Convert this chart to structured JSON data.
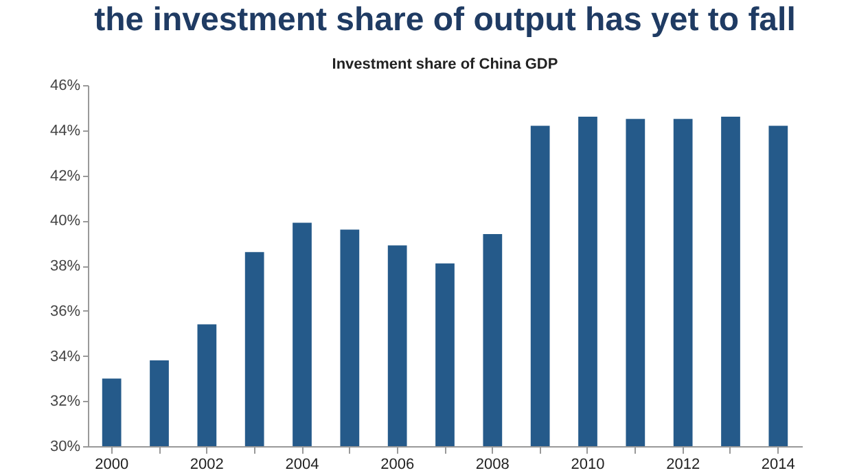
{
  "chart_data": {
    "type": "bar",
    "title": "the investment share of output has yet to fall",
    "subtitle": "Investment share of China GDP",
    "categories": [
      "2000",
      null,
      "2002",
      null,
      "2004",
      null,
      "2006",
      null,
      "2008",
      null,
      "2010",
      null,
      "2012",
      null,
      "2014"
    ],
    "values": [
      33.0,
      33.8,
      35.4,
      38.6,
      39.9,
      39.6,
      38.9,
      38.1,
      39.4,
      44.2,
      44.6,
      44.5,
      44.5,
      44.6,
      44.2
    ],
    "color": "#255a8a",
    "ylim": [
      30,
      46
    ],
    "yticks": [
      {
        "value": 30,
        "label": "30%"
      },
      {
        "value": 32,
        "label": "32%"
      },
      {
        "value": 34,
        "label": "34%"
      },
      {
        "value": 36,
        "label": "36%"
      },
      {
        "value": 38,
        "label": "38%"
      },
      {
        "value": 40,
        "label": "40%"
      },
      {
        "value": 42,
        "label": "42%"
      },
      {
        "value": 44,
        "label": "44%"
      },
      {
        "value": 46,
        "label": "46%"
      }
    ],
    "grid": false
  }
}
